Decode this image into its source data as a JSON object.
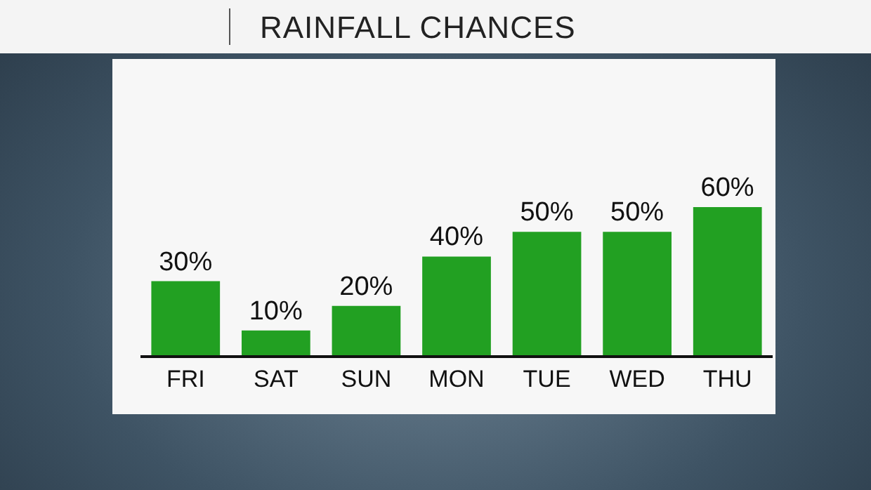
{
  "chart_data": {
    "type": "bar",
    "title": "RAINFALL CHANCES",
    "categories": [
      "FRI",
      "SAT",
      "SUN",
      "MON",
      "TUE",
      "WED",
      "THU"
    ],
    "values": [
      30,
      10,
      20,
      40,
      50,
      50,
      60
    ],
    "value_labels": [
      "30%",
      "10%",
      "20%",
      "40%",
      "50%",
      "50%",
      "60%"
    ],
    "color": "#22a022"
  }
}
